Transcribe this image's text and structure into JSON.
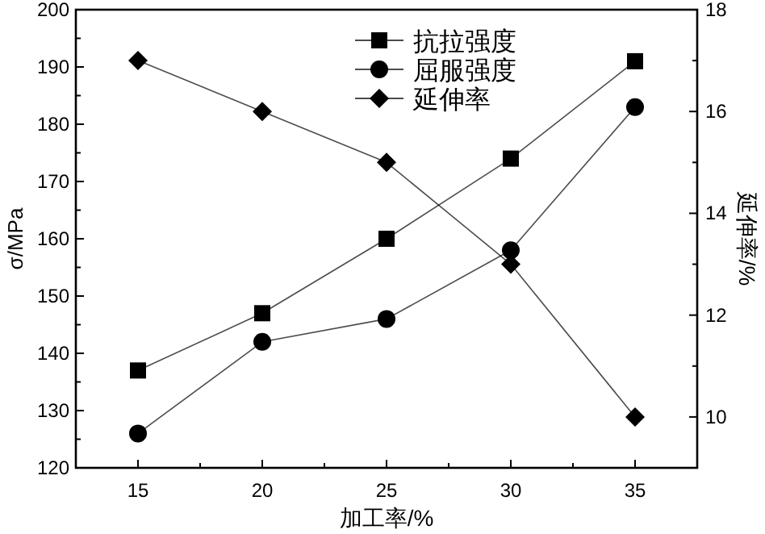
{
  "chart_data": {
    "type": "line",
    "xlabel": "加工率/%",
    "ylabel": "σ/MPa",
    "y2label": "延伸率/%",
    "x": [
      15,
      20,
      25,
      30,
      35
    ],
    "xlim": [
      12.5,
      37.5
    ],
    "xticks": [
      15,
      {
        "value": 17.5,
        "label": null
      },
      20,
      {
        "value": 22.5,
        "label": null
      },
      25,
      {
        "value": 27.5,
        "label": null
      },
      30,
      {
        "value": 32.5,
        "label": null
      },
      35
    ],
    "ylim": [
      120,
      200
    ],
    "yticks": [
      120,
      {
        "value": 125,
        "label": null
      },
      130,
      {
        "value": 135,
        "label": null
      },
      140,
      {
        "value": 145,
        "label": null
      },
      150,
      {
        "value": 155,
        "label": null
      },
      160,
      {
        "value": 165,
        "label": null
      },
      170,
      {
        "value": 175,
        "label": null
      },
      180,
      {
        "value": 185,
        "label": null
      },
      190,
      {
        "value": 195,
        "label": null
      },
      200
    ],
    "y2lim": [
      9,
      18
    ],
    "y2ticks": [
      10,
      {
        "value": 11,
        "label": null
      },
      12,
      {
        "value": 13,
        "label": null
      },
      14,
      {
        "value": 15,
        "label": null
      },
      16,
      {
        "value": 17,
        "label": null
      },
      18
    ],
    "legend": "top",
    "grid": false,
    "series": [
      {
        "name": "抗拉强度",
        "color": "#000000",
        "marker": "square",
        "values": [
          137,
          147,
          160,
          174,
          191
        ]
      },
      {
        "name": "屈服强度",
        "color": "#000000",
        "marker": "circle",
        "values": [
          126,
          142,
          146,
          158,
          183
        ]
      },
      {
        "name": "延伸率",
        "color": "#000000",
        "marker": "diamond",
        "axis": "y2",
        "values": [
          17,
          16,
          15,
          13,
          10
        ]
      }
    ]
  }
}
